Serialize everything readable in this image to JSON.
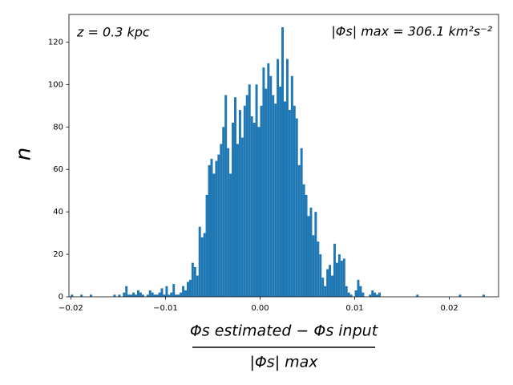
{
  "chart_data": {
    "type": "histogram",
    "annotations": [
      "z = 0.3 kpc",
      "|Φs| max = 306.1 km²s⁻²"
    ],
    "ylabel": "n",
    "xlabel_numerator": "Φs estimated − Φs input",
    "xlabel_denominator": "|Φs| max",
    "color": "#1f77b4",
    "xlim": [
      -0.0202,
      0.0252
    ],
    "ylim": [
      0,
      133
    ],
    "xticks": [
      {
        "value": -0.02,
        "label": "−0.02"
      },
      {
        "value": -0.01,
        "label": "−0.01"
      },
      {
        "value": 0,
        "label": "0.00"
      },
      {
        "value": 0.01,
        "label": "0.01"
      },
      {
        "value": 0.02,
        "label": "0.02"
      }
    ],
    "yticks": [
      0,
      20,
      40,
      60,
      80,
      100,
      120
    ],
    "bins": [
      -0.02,
      -0.01975,
      -0.0195,
      -0.01925,
      -0.019,
      -0.01875,
      -0.0185,
      -0.01825,
      -0.018,
      -0.01775,
      -0.0175,
      -0.01725,
      -0.017,
      -0.01675,
      -0.0165,
      -0.01625,
      -0.016,
      -0.01575,
      -0.0155,
      -0.01525,
      -0.015,
      -0.01475,
      -0.0145,
      -0.01425,
      -0.014,
      -0.01375,
      -0.0135,
      -0.01325,
      -0.013,
      -0.01275,
      -0.0125,
      -0.01225,
      -0.012,
      -0.01175,
      -0.0115,
      -0.01125,
      -0.011,
      -0.01075,
      -0.0105,
      -0.01025,
      -0.01,
      -0.00975,
      -0.0095,
      -0.00925,
      -0.009,
      -0.00875,
      -0.0085,
      -0.00825,
      -0.008,
      -0.00775,
      -0.0075,
      -0.00725,
      -0.007,
      -0.00675,
      -0.0065,
      -0.00625,
      -0.006,
      -0.00575,
      -0.0055,
      -0.00525,
      -0.005,
      -0.00475,
      -0.0045,
      -0.00425,
      -0.004,
      -0.00375,
      -0.0035,
      -0.00325,
      -0.003,
      -0.00275,
      -0.0025,
      -0.00225,
      -0.002,
      -0.00175,
      -0.0015,
      -0.00125,
      -0.001,
      -0.00075,
      -0.0005,
      -0.00025,
      0,
      0.00025,
      0.0005,
      0.00075,
      0.001,
      0.00125,
      0.0015,
      0.00175,
      0.002,
      0.00225,
      0.0025,
      0.00275,
      0.003,
      0.00325,
      0.0035,
      0.00375,
      0.004,
      0.00425,
      0.0045,
      0.00475,
      0.005,
      0.00525,
      0.0055,
      0.00575,
      0.006,
      0.00625,
      0.0065,
      0.00675,
      0.007,
      0.00725,
      0.0075,
      0.00775,
      0.008,
      0.00825,
      0.0085,
      0.00875,
      0.009,
      0.00925,
      0.0095,
      0.00975,
      0.01,
      0.01025,
      0.0105,
      0.01075,
      0.011,
      0.01125,
      0.0115,
      0.01175,
      0.012,
      0.01225,
      0.0125,
      0.01275,
      0.013,
      0.01325,
      0.0135,
      0.01375,
      0.014,
      0.01425,
      0.0145,
      0.01475,
      0.015,
      0.01525,
      0.0155,
      0.01575,
      0.016,
      0.01625,
      0.0165,
      0.01675,
      0.017,
      0.01725,
      0.0175,
      0.01775,
      0.018,
      0.01825,
      0.0185,
      0.01875,
      0.019,
      0.01925,
      0.0195,
      0.01975,
      0.02,
      0.02025,
      0.0205,
      0.02075,
      0.021,
      0.02125,
      0.0215,
      0.02175,
      0.022,
      0.02225,
      0.0225,
      0.02275,
      0.023,
      0.02325,
      0.0235,
      0.02375,
      0.024
    ],
    "counts": [
      1,
      0,
      0,
      0,
      1,
      0,
      0,
      0,
      1,
      0,
      0,
      0,
      0,
      0,
      0,
      0,
      0,
      0,
      1,
      0,
      1,
      0,
      2,
      5,
      1,
      1,
      2,
      1,
      3,
      2,
      1,
      0,
      1,
      3,
      2,
      1,
      1,
      2,
      4,
      1,
      5,
      1,
      2,
      6,
      1,
      1,
      2,
      5,
      3,
      7,
      8,
      16,
      14,
      10,
      33,
      28,
      30,
      48,
      62,
      65,
      58,
      64,
      67,
      72,
      80,
      95,
      70,
      58,
      82,
      94,
      72,
      88,
      75,
      90,
      95,
      100,
      85,
      82,
      100,
      80,
      90,
      108,
      98,
      110,
      104,
      95,
      91,
      112,
      99,
      127,
      92,
      112,
      88,
      104,
      90,
      84,
      62,
      70,
      53,
      48,
      38,
      42,
      29,
      40,
      26,
      20,
      9,
      5,
      13,
      15,
      10,
      25,
      16,
      20,
      17,
      18,
      5,
      2,
      1,
      0,
      3,
      8,
      5,
      2,
      0,
      0,
      1,
      3,
      2,
      1,
      2,
      0,
      0,
      0,
      0,
      0,
      0,
      0,
      0,
      0,
      0,
      0,
      0,
      0,
      0,
      0,
      1,
      0,
      0,
      0,
      0,
      0,
      0,
      0,
      0,
      0,
      0,
      0,
      0,
      0,
      0,
      0,
      0,
      0,
      1,
      0,
      0,
      0,
      0,
      0,
      0,
      0,
      0,
      0,
      1,
      0
    ]
  }
}
